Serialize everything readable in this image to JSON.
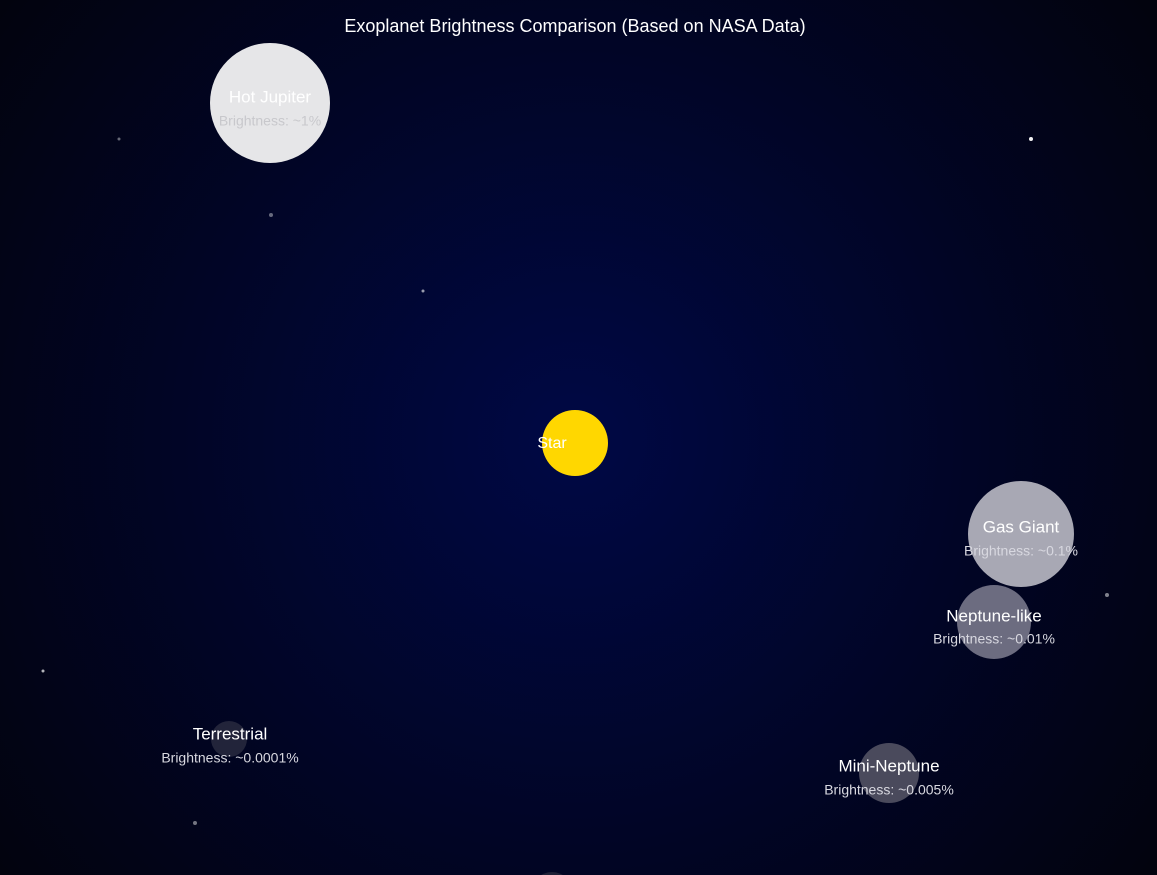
{
  "header": {
    "title": "Exoplanet Brightness Comparison (Based on NASA Data)"
  },
  "star": {
    "label": "Star"
  },
  "planets": [
    {
      "name": "Hot Jupiter",
      "brightness": "Brightness: ~1%"
    },
    {
      "name": "Gas Giant",
      "brightness": "Brightness: ~0.1%"
    },
    {
      "name": "Neptune-like",
      "brightness": "Brightness: ~0.01%"
    },
    {
      "name": "Mini-Neptune",
      "brightness": "Brightness: ~0.005%"
    },
    {
      "name": "Terrestrial",
      "brightness": "Brightness: ~0.0001%"
    }
  ]
}
